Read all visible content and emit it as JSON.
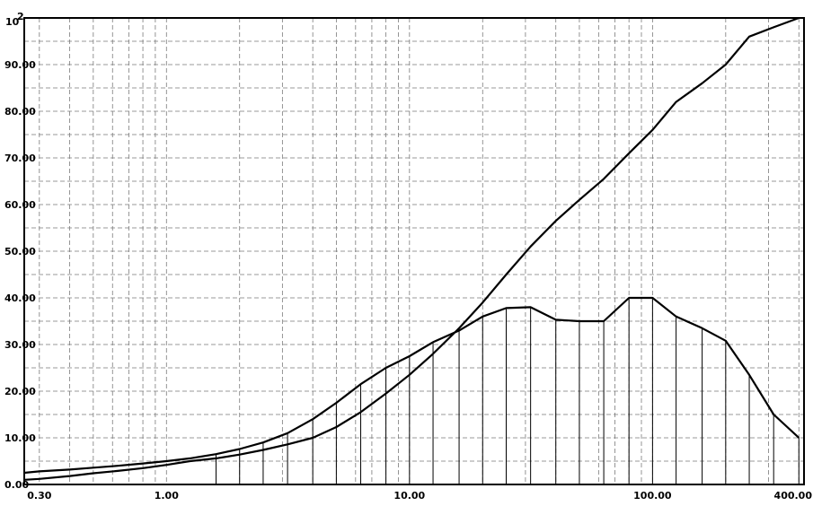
{
  "chart_data": {
    "type": "line",
    "x_scale": "log",
    "xlim": [
      0.26,
      420
    ],
    "ylim": [
      0,
      100
    ],
    "grid": true,
    "x_ticks": [
      {
        "value": 0.3,
        "label": "0.30"
      },
      {
        "value": 1,
        "label": "1.00"
      },
      {
        "value": 10,
        "label": "10.00"
      },
      {
        "value": 100,
        "label": "100.00"
      },
      {
        "value": 400,
        "label": "400.00"
      }
    ],
    "y_ticks": [
      {
        "value": 0,
        "label": "0.00"
      },
      {
        "value": 10,
        "label": "10.00"
      },
      {
        "value": 20,
        "label": "20.00"
      },
      {
        "value": 30,
        "label": "30.00"
      },
      {
        "value": 40,
        "label": "40.00"
      },
      {
        "value": 50,
        "label": "50.00"
      },
      {
        "value": 60,
        "label": "60.00"
      },
      {
        "value": 70,
        "label": "70.00"
      },
      {
        "value": 80,
        "label": "80.00"
      },
      {
        "value": 90,
        "label": "90.00"
      }
    ],
    "y_top_label": {
      "base": "10",
      "exp": "2"
    },
    "series": [
      {
        "x": [
          0.26,
          0.3,
          0.4,
          0.5,
          0.63,
          0.8,
          1.0,
          1.25,
          1.6,
          2.0,
          2.5,
          3.15,
          4.0,
          5.0,
          6.3,
          8.0,
          10,
          12.5,
          16,
          20,
          25,
          31.5,
          40,
          50,
          63,
          80,
          100,
          125,
          160,
          200,
          250,
          315,
          400
        ],
        "values": [
          1.0,
          1.2,
          1.8,
          2.4,
          2.9,
          3.5,
          4.2,
          5.0,
          5.6,
          6.4,
          7.4,
          8.6,
          10.0,
          12.3,
          15.5,
          19.5,
          23.5,
          28.0,
          33.5,
          39.0,
          45.0,
          51.0,
          56.5,
          61.0,
          65.5,
          71.0,
          76.0,
          82.0,
          86.0,
          90.0,
          96.0,
          98.0,
          100.0
        ]
      },
      {
        "x": [
          0.26,
          0.3,
          0.4,
          0.5,
          0.63,
          0.8,
          1.0,
          1.25,
          1.6,
          2.0,
          2.5,
          3.15,
          4.0,
          5.0,
          6.3,
          8.0,
          10,
          12.5,
          16,
          20,
          25,
          31.5,
          40,
          50,
          63,
          80,
          100,
          125,
          160,
          200,
          250,
          315,
          400
        ],
        "values": [
          2.5,
          2.8,
          3.2,
          3.6,
          4.0,
          4.5,
          5.0,
          5.6,
          6.5,
          7.6,
          9.0,
          11.0,
          14.0,
          17.5,
          21.5,
          25.0,
          27.5,
          30.5,
          33.0,
          36.0,
          37.8,
          38.0,
          35.3,
          35.0,
          35.0,
          40.0,
          40.0,
          36.0,
          33.5,
          30.8,
          23.5,
          15.0,
          10.0
        ]
      }
    ]
  }
}
